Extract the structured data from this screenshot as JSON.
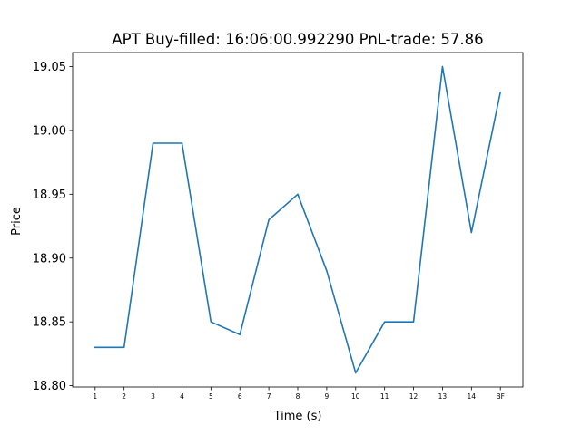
{
  "chart_data": {
    "type": "line",
    "title": "APT  Buy-filled:  16:06:00.992290  PnL-trade:  57.86",
    "xlabel": "Time (s)",
    "ylabel": "Price",
    "categories": [
      "1",
      "2",
      "3",
      "4",
      "5",
      "6",
      "7",
      "8",
      "9",
      "10",
      "11",
      "12",
      "13",
      "14",
      "BF"
    ],
    "series": [
      {
        "values": [
          18.83,
          18.83,
          18.99,
          18.99,
          18.85,
          18.84,
          18.93,
          18.95,
          18.89,
          18.81,
          18.85,
          18.85,
          19.05,
          18.92,
          19.03
        ]
      }
    ],
    "ylim": [
      18.799,
      19.061
    ],
    "yticks": [
      "18.80",
      "18.85",
      "18.90",
      "18.95",
      "19.00",
      "19.05"
    ],
    "grid": false,
    "line_color": "#1f77b4"
  }
}
